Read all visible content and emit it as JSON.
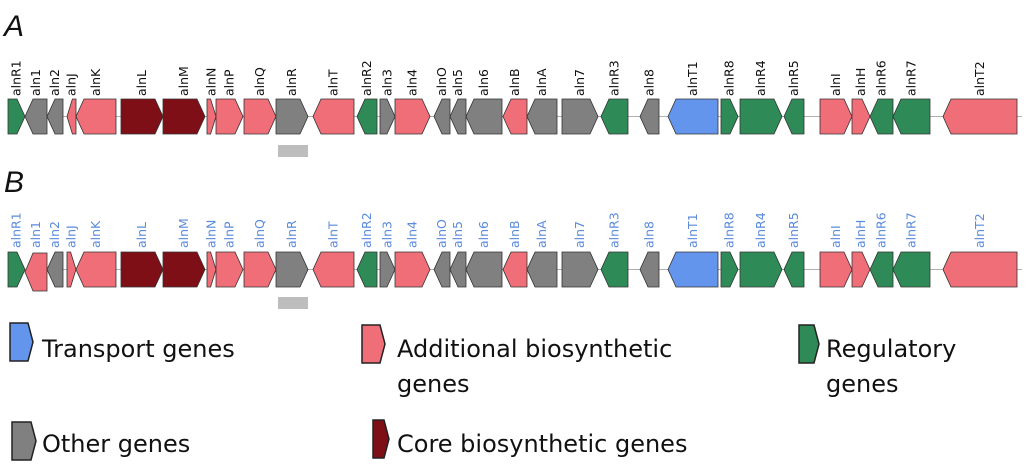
{
  "panels": [
    {
      "letter": "A",
      "label_color": "#111111",
      "genes": [
        {
          "name": "alnR1",
          "category": "regulatory",
          "strand": "+"
        },
        {
          "name": "aln1",
          "category": "other",
          "strand": "-"
        },
        {
          "name": "aln2",
          "category": "other",
          "strand": "-"
        },
        {
          "name": "alnJ",
          "category": "additional",
          "strand": "-"
        },
        {
          "name": "alnK",
          "category": "additional",
          "strand": "-"
        },
        {
          "name": "alnL",
          "category": "core",
          "strand": "+"
        },
        {
          "name": "alnM",
          "category": "core",
          "strand": "+"
        },
        {
          "name": "alnN",
          "category": "additional",
          "strand": "+"
        },
        {
          "name": "alnP",
          "category": "additional",
          "strand": "+"
        },
        {
          "name": "alnQ",
          "category": "additional",
          "strand": "+"
        },
        {
          "name": "alnR",
          "category": "other",
          "strand": "+"
        },
        {
          "name": "alnT",
          "category": "additional",
          "strand": "-"
        },
        {
          "name": "alnR2",
          "category": "regulatory",
          "strand": "-"
        },
        {
          "name": "aln3",
          "category": "other",
          "strand": "+"
        },
        {
          "name": "aln4",
          "category": "additional",
          "strand": "+"
        },
        {
          "name": "alnO",
          "category": "other",
          "strand": "-"
        },
        {
          "name": "aln5",
          "category": "other",
          "strand": "-"
        },
        {
          "name": "aln6",
          "category": "other",
          "strand": "-"
        },
        {
          "name": "alnB",
          "category": "additional",
          "strand": "-"
        },
        {
          "name": "alnA",
          "category": "other",
          "strand": "-"
        },
        {
          "name": "aln7",
          "category": "other",
          "strand": "+"
        },
        {
          "name": "alnR3",
          "category": "regulatory",
          "strand": "-"
        },
        {
          "name": "aln8",
          "category": "other",
          "strand": "-"
        },
        {
          "name": "alnT1",
          "category": "transport",
          "strand": "-"
        },
        {
          "name": "alnR8",
          "category": "regulatory",
          "strand": "+"
        },
        {
          "name": "alnR4",
          "category": "regulatory",
          "strand": "+"
        },
        {
          "name": "alnR5",
          "category": "regulatory",
          "strand": "-"
        },
        {
          "name": "alnI",
          "category": "additional",
          "strand": "+"
        },
        {
          "name": "alnH",
          "category": "additional",
          "strand": "+"
        },
        {
          "name": "alnR6",
          "category": "regulatory",
          "strand": "-"
        },
        {
          "name": "alnR7",
          "category": "regulatory",
          "strand": "-"
        },
        {
          "name": "alnT2",
          "category": "additional",
          "strand": "-"
        }
      ]
    },
    {
      "letter": "B",
      "label_color": "#5b8bdc",
      "genes": [
        {
          "name": "alnR1",
          "category": "regulatory",
          "strand": "+"
        },
        {
          "name": "aln1",
          "category": "additional",
          "strand": "-"
        },
        {
          "name": "aln2",
          "category": "other",
          "strand": "-"
        },
        {
          "name": "alnJ",
          "category": "additional",
          "strand": "+"
        },
        {
          "name": "alnK",
          "category": "additional",
          "strand": "-"
        },
        {
          "name": "alnL",
          "category": "core",
          "strand": "+"
        },
        {
          "name": "alnM",
          "category": "core",
          "strand": "+"
        },
        {
          "name": "alnN",
          "category": "additional",
          "strand": "+"
        },
        {
          "name": "alnP",
          "category": "additional",
          "strand": "+"
        },
        {
          "name": "alnQ",
          "category": "additional",
          "strand": "+"
        },
        {
          "name": "alnR",
          "category": "other",
          "strand": "+"
        },
        {
          "name": "alnT",
          "category": "additional",
          "strand": "-"
        },
        {
          "name": "alnR2",
          "category": "regulatory",
          "strand": "-"
        },
        {
          "name": "aln3",
          "category": "other",
          "strand": "+"
        },
        {
          "name": "aln4",
          "category": "additional",
          "strand": "+"
        },
        {
          "name": "alnO",
          "category": "other",
          "strand": "-"
        },
        {
          "name": "aln5",
          "category": "other",
          "strand": "-"
        },
        {
          "name": "aln6",
          "category": "other",
          "strand": "-"
        },
        {
          "name": "alnB",
          "category": "additional",
          "strand": "-"
        },
        {
          "name": "alnA",
          "category": "other",
          "strand": "-"
        },
        {
          "name": "aln7",
          "category": "other",
          "strand": "+"
        },
        {
          "name": "alnR3",
          "category": "regulatory",
          "strand": "-"
        },
        {
          "name": "aln8",
          "category": "other",
          "strand": "-"
        },
        {
          "name": "alnT1",
          "category": "transport",
          "strand": "-"
        },
        {
          "name": "alnR8",
          "category": "regulatory",
          "strand": "+"
        },
        {
          "name": "alnR4",
          "category": "regulatory",
          "strand": "+"
        },
        {
          "name": "alnR5",
          "category": "regulatory",
          "strand": "-"
        },
        {
          "name": "alnI",
          "category": "additional",
          "strand": "+"
        },
        {
          "name": "alnH",
          "category": "additional",
          "strand": "+"
        },
        {
          "name": "alnR6",
          "category": "regulatory",
          "strand": "-"
        },
        {
          "name": "alnR7",
          "category": "regulatory",
          "strand": "-"
        },
        {
          "name": "alnT2",
          "category": "additional",
          "strand": "-"
        }
      ]
    }
  ],
  "colors": {
    "transport": "#6495ed",
    "additional": "#f06e78",
    "regulatory": "#2e8b57",
    "other": "#808080",
    "core": "#7f0f17",
    "marker_bar": "#bdbdbd"
  },
  "legend": [
    {
      "category": "transport",
      "lines": [
        "Transport genes"
      ]
    },
    {
      "category": "additional",
      "lines": [
        "Additional biosynthetic",
        "genes"
      ]
    },
    {
      "category": "regulatory",
      "lines": [
        "Regulatory",
        "genes"
      ]
    },
    {
      "category": "other",
      "lines": [
        "Other genes"
      ]
    },
    {
      "category": "core",
      "lines": [
        "Core biosynthetic genes"
      ]
    }
  ]
}
